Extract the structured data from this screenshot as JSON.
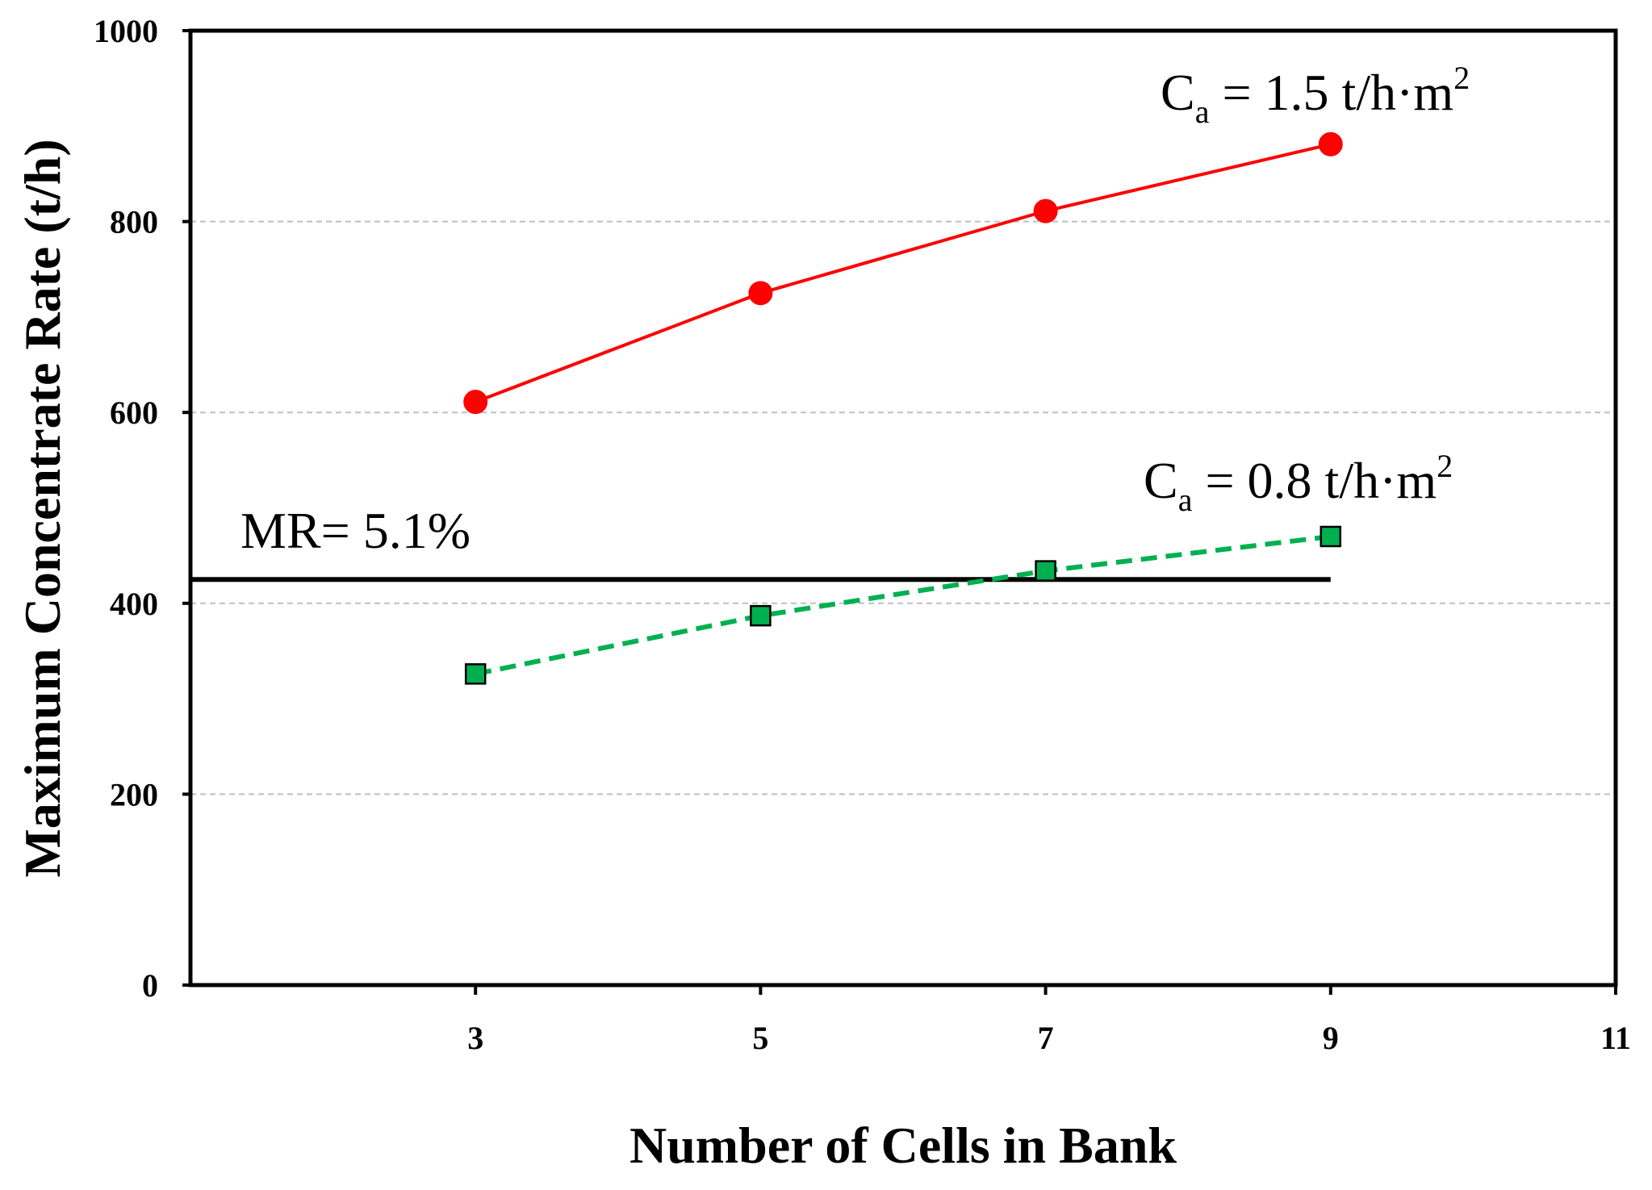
{
  "chart_data": {
    "type": "line",
    "title": "",
    "xlabel": "Number of Cells in Bank",
    "ylabel": "Maximum Concentrate Rate (t/h)",
    "xlim": [
      1,
      11
    ],
    "ylim": [
      0,
      1000
    ],
    "x_ticks": [
      3,
      5,
      7,
      9,
      11
    ],
    "y_ticks": [
      0,
      200,
      400,
      600,
      800,
      1000
    ],
    "grid": "horizontal dashed",
    "series": [
      {
        "name": "Ca = 1.5 t/h·m2",
        "x": [
          3,
          5,
          7,
          9
        ],
        "values": [
          611,
          725,
          811,
          881
        ],
        "color": "#ff0000",
        "marker": "circle",
        "line_style": "solid"
      },
      {
        "name": "Ca = 0.8 t/h·m2",
        "x": [
          3,
          5,
          7,
          9
        ],
        "values": [
          326,
          387,
          434,
          470
        ],
        "color": "#00b050",
        "marker": "square",
        "line_style": "dashed"
      }
    ],
    "reference_line": {
      "label": "MR= 5.1%",
      "value": 425,
      "x_range": [
        1,
        9
      ],
      "color": "#000000"
    },
    "annotations": [
      {
        "series": 0,
        "base": "C",
        "sub": "a",
        "text": " = 1.5 t/h·m",
        "sup": "2"
      },
      {
        "series": 1,
        "base": "C",
        "sub": "a",
        "text": " = 0.8 t/h·m",
        "sup": "2"
      }
    ]
  }
}
